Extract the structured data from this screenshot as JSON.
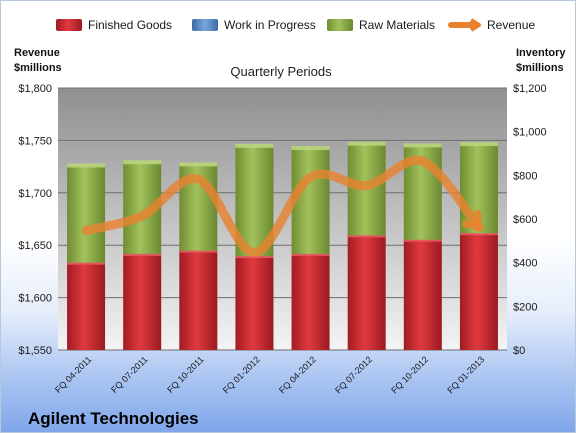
{
  "company": "Agilent Technologies",
  "chart_data": {
    "type": "bar",
    "subtitle": "Quarterly Periods",
    "categories": [
      "FQ 04-2011",
      "FQ 07-2011",
      "FQ 10-2011",
      "FQ 01-2012",
      "FQ 04-2012",
      "FQ 07-2012",
      "FQ 10-2012",
      "FQ 01-2013"
    ],
    "stacked": true,
    "series": [
      {
        "name": "Finished Goods",
        "kind": "bar",
        "axis": "right",
        "color": "#c0282f",
        "values": [
          400,
          440,
          455,
          430,
          440,
          525,
          505,
          535
        ]
      },
      {
        "name": "Work in Progress",
        "kind": "bar",
        "axis": "right",
        "color": "#4f81bd",
        "values": [
          0,
          0,
          0,
          0,
          0,
          0,
          0,
          0
        ]
      },
      {
        "name": "Raw Materials",
        "kind": "bar",
        "axis": "right",
        "color": "#8fae4a",
        "values": [
          445,
          420,
          395,
          505,
          485,
          420,
          432,
          408
        ]
      },
      {
        "name": "Revenue",
        "kind": "line",
        "axis": "left",
        "color": "#e8822f",
        "values": [
          1664,
          1678,
          1713,
          1643,
          1715,
          1707,
          1730,
          1667
        ]
      }
    ],
    "y_left": {
      "label_line1": "Revenue",
      "label_line2": "$millions",
      "min": 1550,
      "max": 1800,
      "ticks": [
        "$1,550",
        "$1,600",
        "$1,650",
        "$1,700",
        "$1,750",
        "$1,800"
      ]
    },
    "y_right": {
      "label_line1": "Inventory",
      "label_line2": "$millions",
      "min": 0,
      "max": 1200,
      "ticks": [
        "$0",
        "$200",
        "$400",
        "$600",
        "$800",
        "$1,000",
        "$1,200"
      ]
    },
    "grid": true,
    "legend_position": "top"
  }
}
